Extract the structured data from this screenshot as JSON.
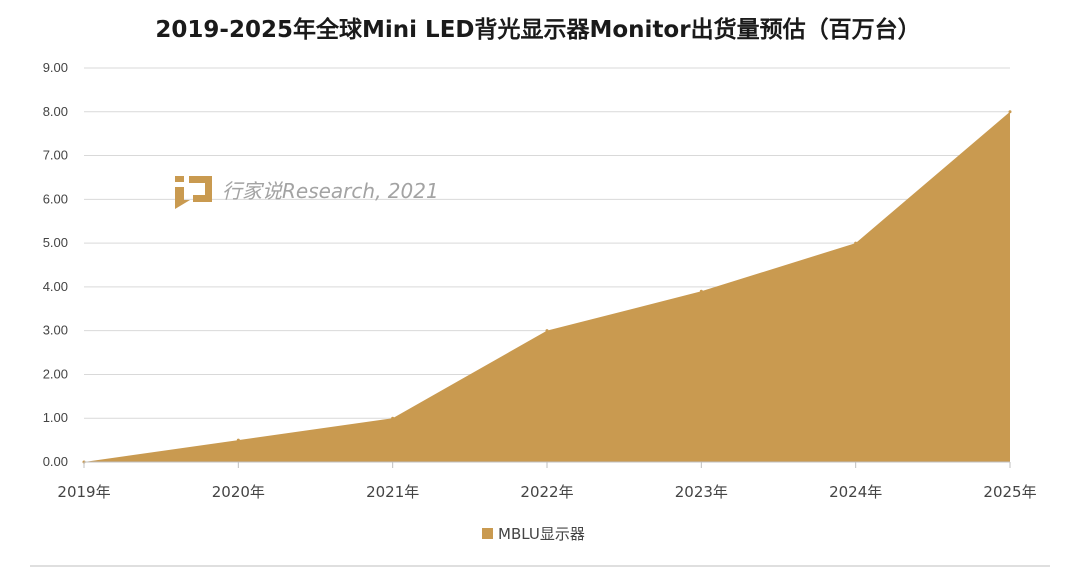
{
  "chart_data": {
    "type": "area",
    "title": "2019-2025年全球Mini LED背光显示器Monitor出货量预估（百万台）",
    "categories": [
      "2019年",
      "2020年",
      "2021年",
      "2022年",
      "2023年",
      "2024年",
      "2025年"
    ],
    "series": [
      {
        "name": "MBLU显示器",
        "values": [
          0,
          0.5,
          1,
          3,
          3.9,
          5,
          8
        ],
        "color": "#c99a50"
      }
    ],
    "ylim": [
      0,
      9
    ],
    "yticks": [
      "0.00",
      "1.00",
      "2.00",
      "3.00",
      "4.00",
      "5.00",
      "6.00",
      "7.00",
      "8.00",
      "9.00"
    ],
    "grid": true,
    "legend_position": "bottom",
    "watermark": "行家说Research, 2021"
  }
}
